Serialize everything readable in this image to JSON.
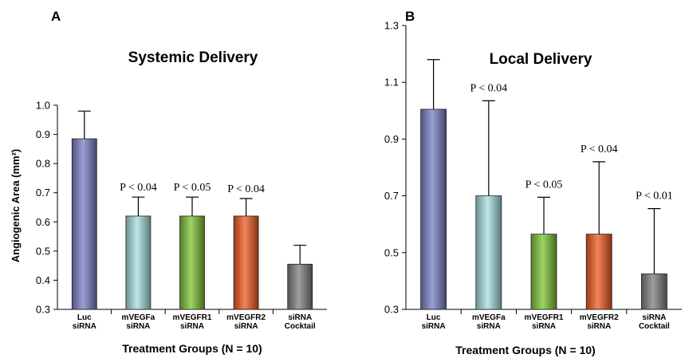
{
  "chart_data": [
    {
      "type": "bar",
      "panel": "A",
      "title": "Systemic Delivery",
      "xlabel": "Treatment Groups (N = 10)",
      "ylabel": "Angiogenic Area (mm²)",
      "ylim": [
        0.3,
        1.0
      ],
      "yticks": [
        "0.3",
        "0.4",
        "0.5",
        "0.6",
        "0.7",
        "0.8",
        "0.9",
        "1.0"
      ],
      "categories": [
        [
          "Luc",
          "siRNA"
        ],
        [
          "mVEGFa",
          "siRNA"
        ],
        [
          "mVEGFR1",
          "siRNA"
        ],
        [
          "mVEGFR2",
          "siRNA"
        ],
        [
          "siRNA",
          "Cocktail"
        ]
      ],
      "values": [
        0.885,
        0.62,
        0.62,
        0.62,
        0.455
      ],
      "errors": [
        0.095,
        0.065,
        0.065,
        0.06,
        0.065
      ],
      "annotations": [
        "",
        "P < 0.04",
        "P < 0.05",
        "P < 0.04",
        ""
      ],
      "colors": [
        "#7b7fc6",
        "#a8dde0",
        "#7fc337",
        "#f05a22",
        "#7f7f7f"
      ]
    },
    {
      "type": "bar",
      "panel": "B",
      "title": "Local Delivery",
      "xlabel": "Treatment Groups (N = 10)",
      "ylabel": "",
      "ylim": [
        0.3,
        1.3
      ],
      "yticks": [
        "0.3",
        "0.5",
        "0.7",
        "0.9",
        "1.1",
        "1.3"
      ],
      "categories": [
        [
          "Luc",
          "siRNA"
        ],
        [
          "mVEGFa",
          "siRNA"
        ],
        [
          "mVEGFR1",
          "siRNA"
        ],
        [
          "mVEGFR2",
          "siRNA"
        ],
        [
          "siRNA",
          "Cocktail"
        ]
      ],
      "values": [
        1.005,
        0.7,
        0.565,
        0.565,
        0.425
      ],
      "errors": [
        0.175,
        0.335,
        0.13,
        0.255,
        0.23
      ],
      "annotations": [
        "",
        "P < 0.04",
        "P < 0.05",
        "P < 0.04",
        "P < 0.01"
      ],
      "colors": [
        "#7b7fc6",
        "#a8dde0",
        "#7fc337",
        "#f05a22",
        "#7f7f7f"
      ]
    }
  ]
}
